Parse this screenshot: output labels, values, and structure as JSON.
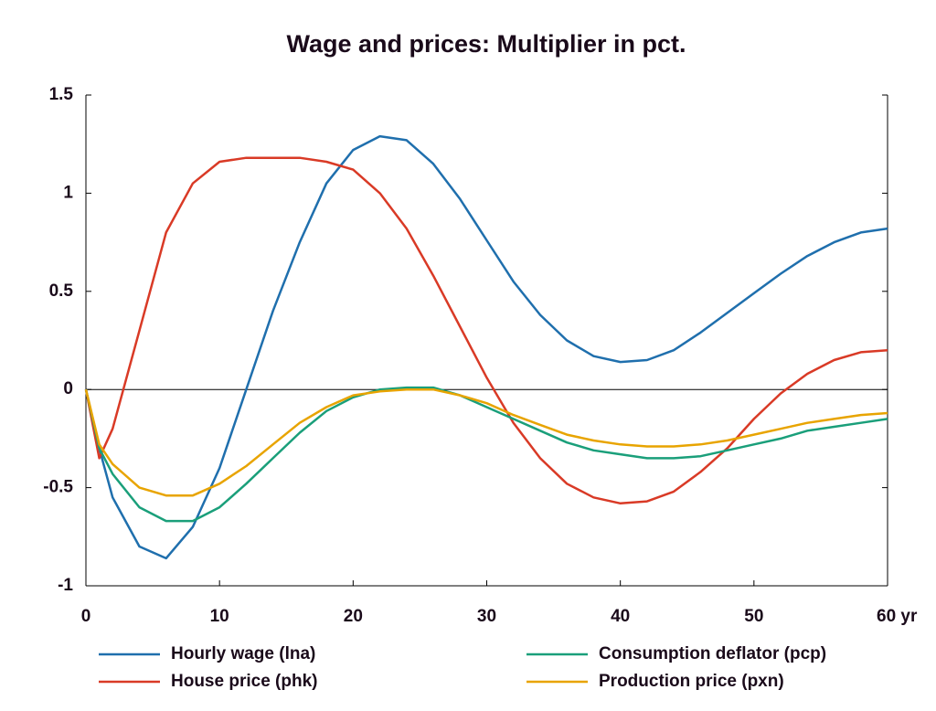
{
  "chart_data": {
    "type": "line",
    "title": "Wage and prices: Multiplier in pct.",
    "x": [
      0,
      1,
      2,
      4,
      6,
      8,
      10,
      12,
      14,
      16,
      18,
      20,
      22,
      24,
      26,
      28,
      30,
      32,
      34,
      36,
      38,
      40,
      42,
      44,
      46,
      48,
      50,
      52,
      54,
      56,
      58,
      60
    ],
    "xlim": [
      0,
      60
    ],
    "xticks": [
      0,
      10,
      20,
      30,
      40,
      50,
      {
        "value": 60,
        "label": "60 yr"
      }
    ],
    "ylim": [
      -1,
      1.5
    ],
    "yticks": [
      -1,
      -0.5,
      0,
      0.5,
      1,
      1.5
    ],
    "series": [
      {
        "name": "Hourly wage (lna)",
        "color": "#1f6fad",
        "values": [
          0,
          -0.3,
          -0.55,
          -0.8,
          -0.86,
          -0.7,
          -0.4,
          0.0,
          0.4,
          0.75,
          1.05,
          1.22,
          1.29,
          1.27,
          1.15,
          0.97,
          0.76,
          0.55,
          0.38,
          0.25,
          0.17,
          0.14,
          0.15,
          0.2,
          0.29,
          0.39,
          0.49,
          0.59,
          0.68,
          0.75,
          0.8,
          0.82
        ]
      },
      {
        "name": "House price (phk)",
        "color": "#d93a26",
        "values": [
          0,
          -0.35,
          -0.2,
          0.3,
          0.8,
          1.05,
          1.16,
          1.18,
          1.18,
          1.18,
          1.16,
          1.12,
          1.0,
          0.82,
          0.58,
          0.32,
          0.06,
          -0.17,
          -0.35,
          -0.48,
          -0.55,
          -0.58,
          -0.57,
          -0.52,
          -0.42,
          -0.3,
          -0.15,
          -0.02,
          0.08,
          0.15,
          0.19,
          0.2
        ]
      },
      {
        "name": "Consumption deflator (pcp)",
        "color": "#1a9f7a",
        "values": [
          0,
          -0.3,
          -0.43,
          -0.6,
          -0.67,
          -0.67,
          -0.6,
          -0.48,
          -0.35,
          -0.22,
          -0.11,
          -0.04,
          0,
          0.01,
          0.01,
          -0.03,
          -0.09,
          -0.15,
          -0.21,
          -0.27,
          -0.31,
          -0.33,
          -0.35,
          -0.35,
          -0.34,
          -0.31,
          -0.28,
          -0.25,
          -0.21,
          -0.19,
          -0.17,
          -0.15
        ]
      },
      {
        "name": "Production price (pxn)",
        "color": "#e8a400",
        "values": [
          0,
          -0.28,
          -0.38,
          -0.5,
          -0.54,
          -0.54,
          -0.48,
          -0.39,
          -0.28,
          -0.17,
          -0.09,
          -0.03,
          -0.01,
          0,
          0,
          -0.03,
          -0.07,
          -0.13,
          -0.18,
          -0.23,
          -0.26,
          -0.28,
          -0.29,
          -0.29,
          -0.28,
          -0.26,
          -0.23,
          -0.2,
          -0.17,
          -0.15,
          -0.13,
          -0.12
        ]
      }
    ]
  }
}
